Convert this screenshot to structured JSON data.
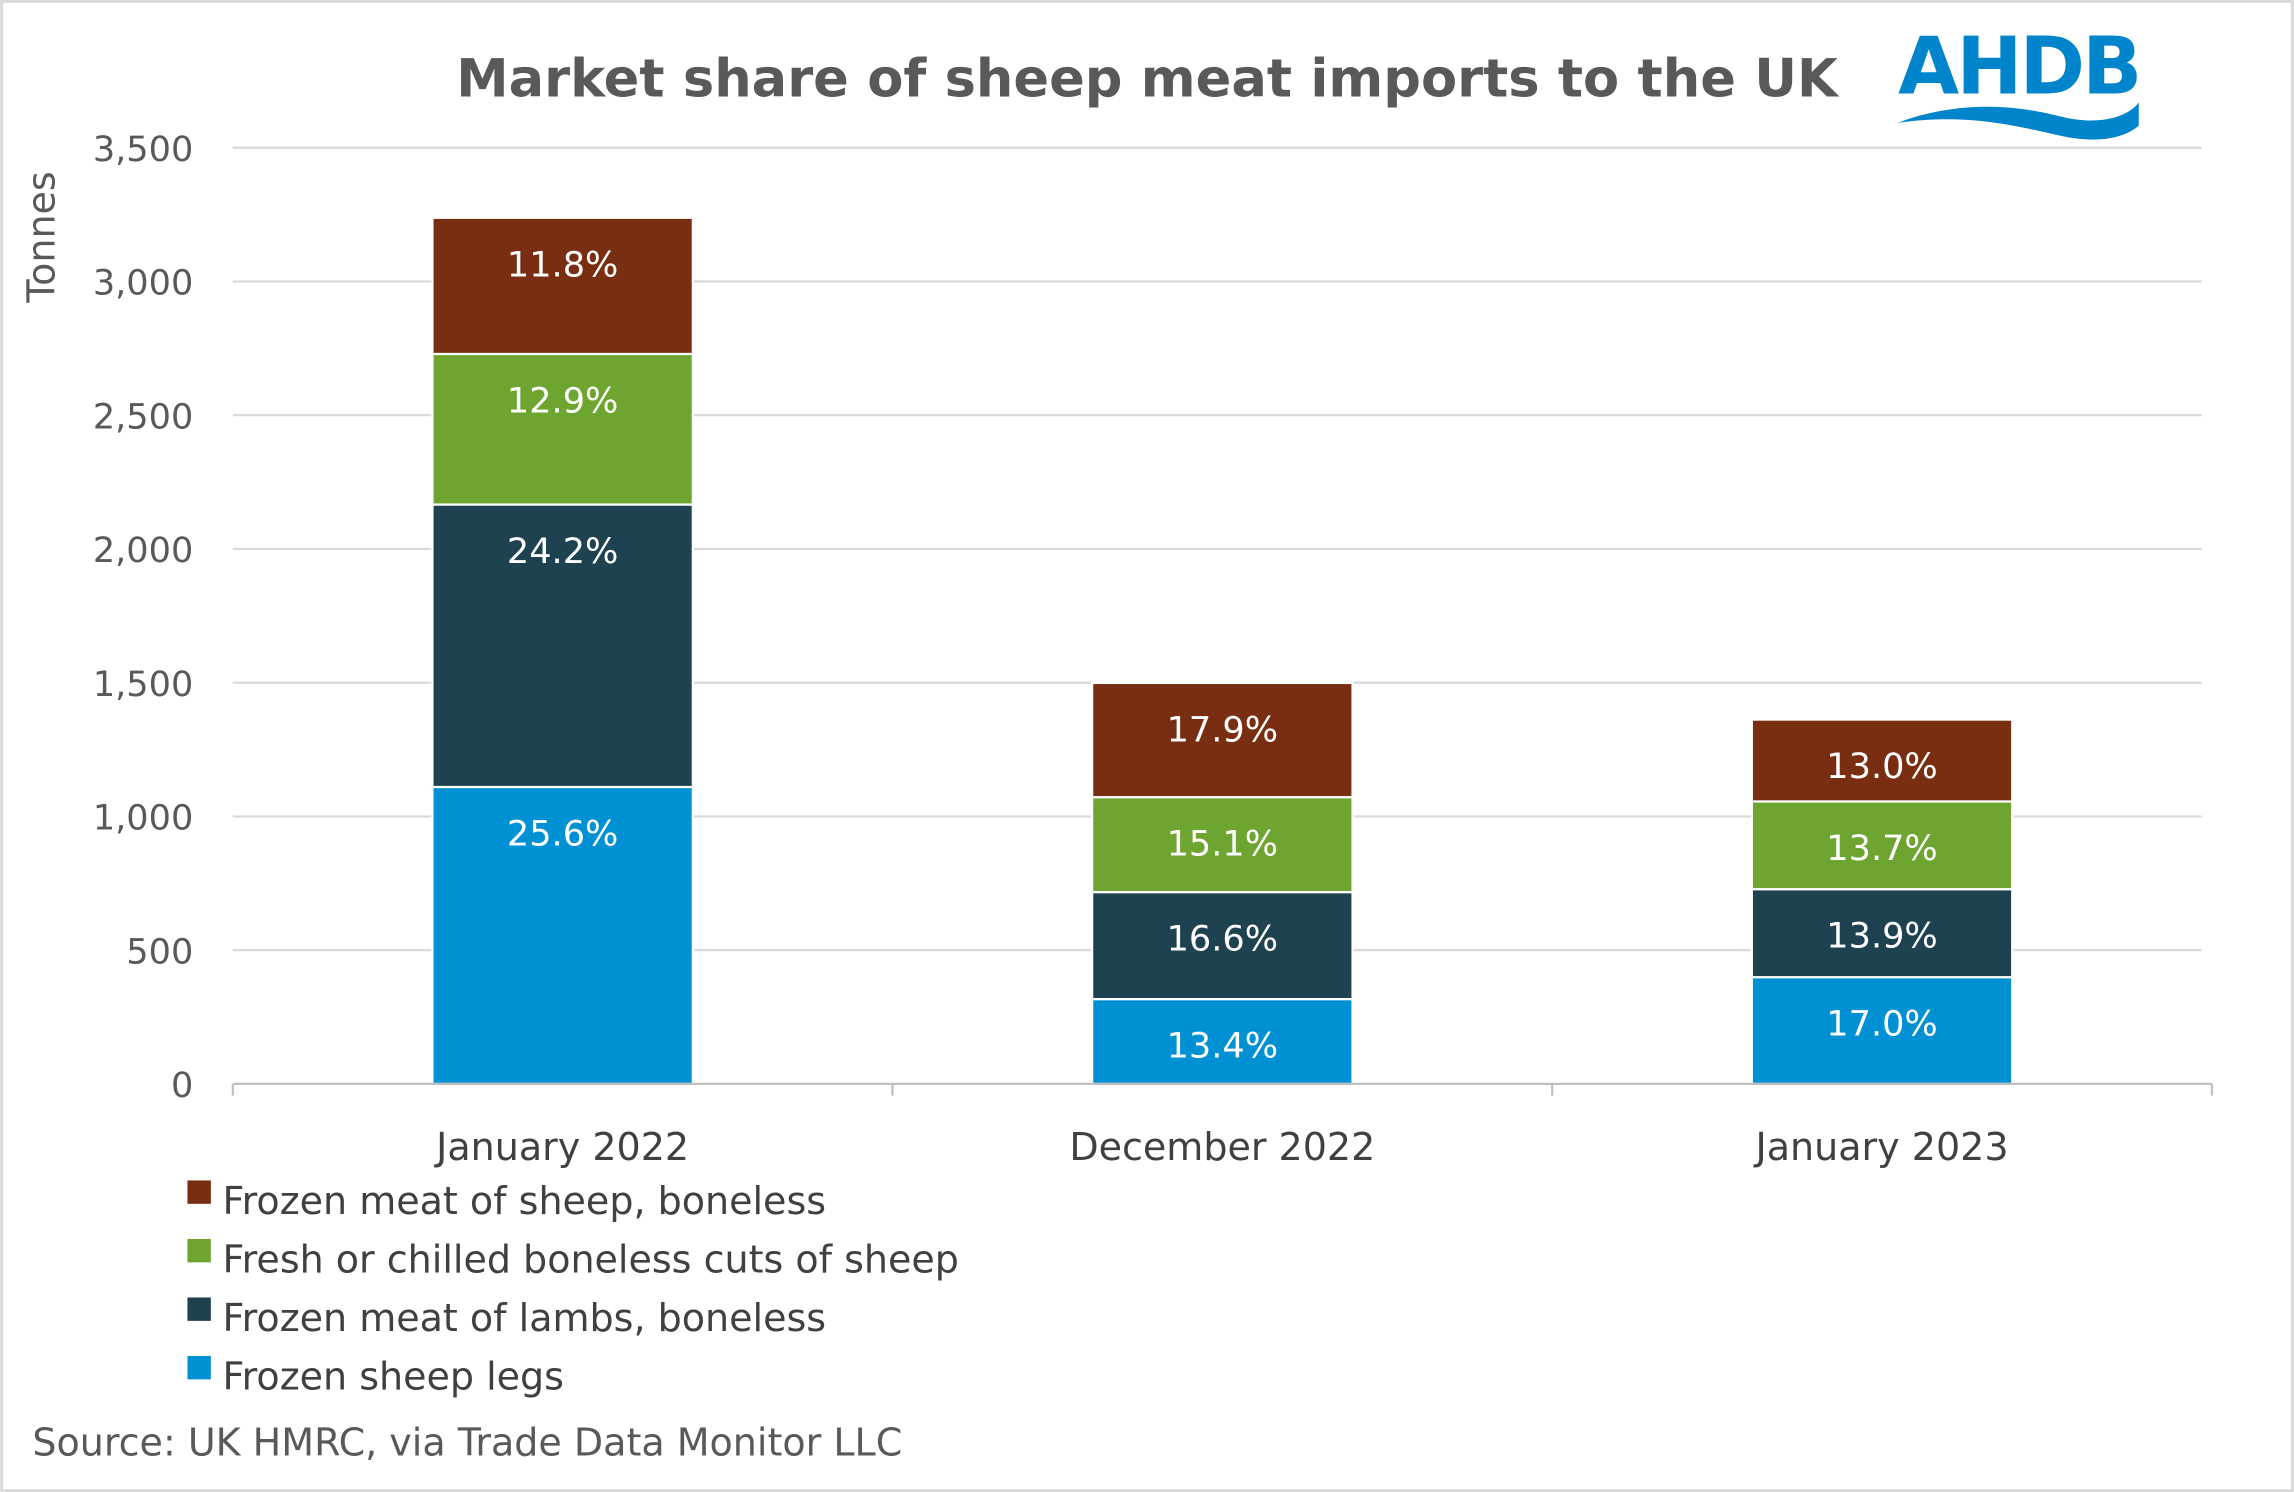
{
  "chart_data": {
    "type": "bar",
    "stacked": true,
    "title": "Market share of sheep meat imports to the UK",
    "ylabel": "Tonnes",
    "xlabel": "",
    "ylim": [
      0,
      3500
    ],
    "yticks": [
      0,
      500,
      1000,
      1500,
      2000,
      2500,
      3000,
      3500
    ],
    "ytick_labels": [
      "0",
      "500",
      "1,000",
      "1,500",
      "2,000",
      "2,500",
      "3,000",
      "3,500"
    ],
    "grid": true,
    "legend_position": "bottom-left",
    "categories": [
      "January 2022",
      "December 2022",
      "January 2023"
    ],
    "series": [
      {
        "name": "Frozen sheep legs",
        "color": "#0090D4",
        "values": [
          1110,
          317,
          399
        ],
        "labels": [
          "25.6%",
          "13.4%",
          "17.0%"
        ]
      },
      {
        "name": "Frozen meat of lambs, boneless",
        "color": "#1F4250",
        "values": [
          1056,
          400,
          329
        ],
        "labels": [
          "24.2%",
          "16.6%",
          "13.9%"
        ]
      },
      {
        "name": "Fresh or chilled boneless cuts of sheep",
        "color": "#6EA531",
        "values": [
          563,
          355,
          328
        ],
        "labels": [
          "12.9%",
          "15.1%",
          "13.7%"
        ]
      },
      {
        "name": "Frozen meat of sheep, boneless",
        "color": "#7A2E11",
        "values": [
          509,
          427,
          306
        ],
        "labels": [
          "11.8%",
          "17.9%",
          "13.0%"
        ]
      }
    ],
    "legend_order": [
      3,
      2,
      1,
      0
    ]
  },
  "source": "Source: UK HMRC, via Trade Data Monitor LLC",
  "logo": {
    "text": "AHDB",
    "color": "#0084CB"
  }
}
